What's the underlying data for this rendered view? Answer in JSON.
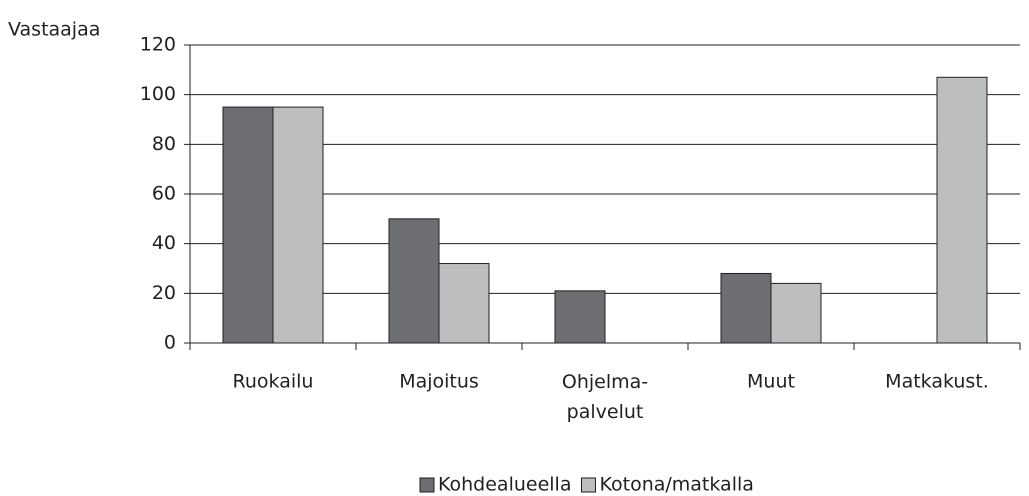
{
  "chart_data": {
    "type": "bar",
    "y_label": "Vastaajaa",
    "categories": [
      "Ruokailu",
      "Majoitus",
      "Ohjelma-\npalvelut",
      "Muut",
      "Matkakust."
    ],
    "series": [
      {
        "name": "Kohdealueella",
        "color": "#6d6e71",
        "values": [
          95,
          50,
          21,
          28,
          null
        ]
      },
      {
        "name": "Kotona/matkalla",
        "color": "#bcbec0",
        "values": [
          95,
          32,
          null,
          24,
          107
        ]
      }
    ],
    "ylim": [
      0,
      120
    ],
    "yticks": [
      0,
      20,
      40,
      60,
      80,
      100,
      120
    ],
    "grid": true,
    "legend": "bottom"
  }
}
